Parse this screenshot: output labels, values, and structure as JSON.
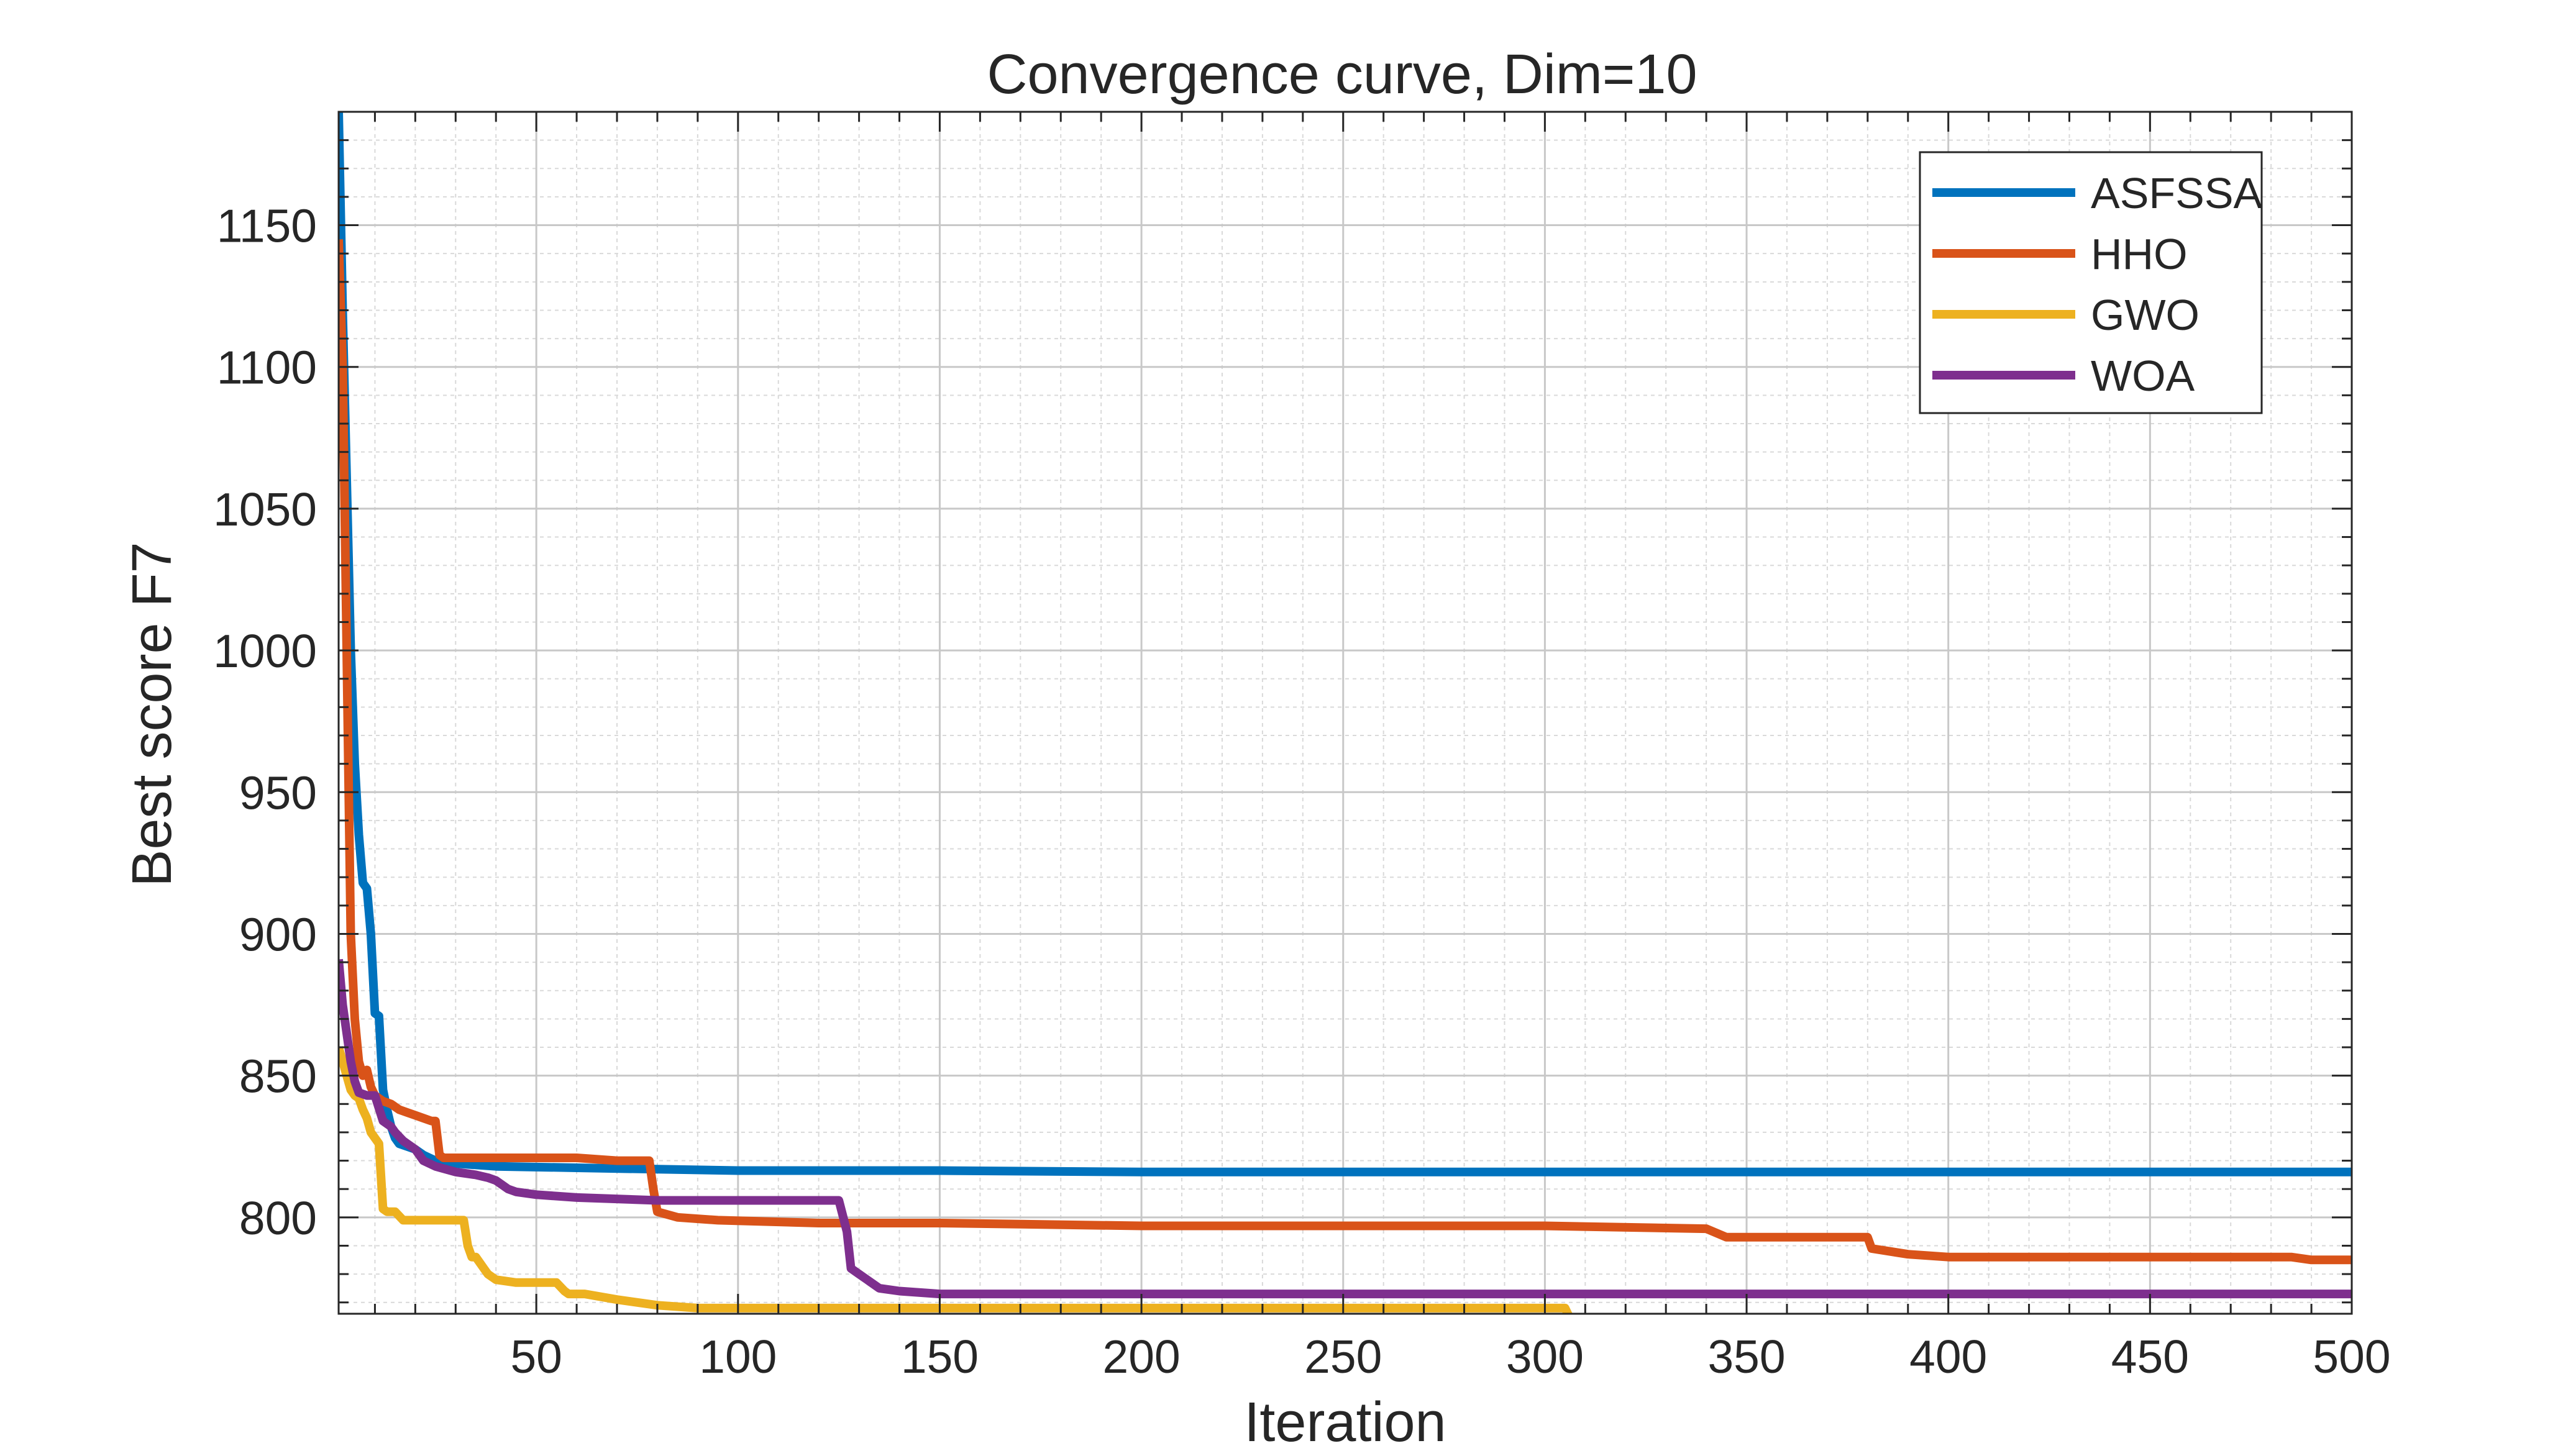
{
  "chart_data": {
    "type": "line",
    "title": "Convergence curve, Dim=10",
    "xlabel": "Iteration",
    "ylabel": "Best score F7",
    "xlim": [
      1,
      500
    ],
    "ylim": [
      766,
      1190
    ],
    "xticks": [
      50,
      100,
      150,
      200,
      250,
      300,
      350,
      400,
      450,
      500
    ],
    "yticks": [
      800,
      850,
      900,
      950,
      1000,
      1050,
      1100,
      1150
    ],
    "grid": true,
    "minor_grid": true,
    "legend_position": "top-right",
    "series": [
      {
        "name": "ASFSSA",
        "color": "#0072BD",
        "points": [
          [
            1,
            1190
          ],
          [
            2,
            1120
          ],
          [
            3,
            1060
          ],
          [
            4,
            1000
          ],
          [
            5,
            960
          ],
          [
            6,
            935
          ],
          [
            7,
            918
          ],
          [
            8,
            916
          ],
          [
            9,
            900
          ],
          [
            10,
            872
          ],
          [
            11,
            871
          ],
          [
            12,
            845
          ],
          [
            13,
            838
          ],
          [
            14,
            832
          ],
          [
            15,
            828
          ],
          [
            16,
            826
          ],
          [
            18,
            825
          ],
          [
            20,
            824
          ],
          [
            22,
            822
          ],
          [
            25,
            820
          ],
          [
            28,
            819
          ],
          [
            30,
            819
          ],
          [
            40,
            818
          ],
          [
            60,
            817.5
          ],
          [
            80,
            817
          ],
          [
            100,
            816.5
          ],
          [
            150,
            816.5
          ],
          [
            200,
            816
          ],
          [
            300,
            816
          ],
          [
            400,
            816
          ],
          [
            500,
            816
          ]
        ]
      },
      {
        "name": "HHO",
        "color": "#D95319",
        "points": [
          [
            1,
            1145
          ],
          [
            2,
            1100
          ],
          [
            3,
            1000
          ],
          [
            4,
            900
          ],
          [
            5,
            870
          ],
          [
            6,
            855
          ],
          [
            7,
            850
          ],
          [
            8,
            852
          ],
          [
            9,
            846
          ],
          [
            10,
            843
          ],
          [
            12,
            841
          ],
          [
            14,
            840
          ],
          [
            16,
            838
          ],
          [
            18,
            837
          ],
          [
            20,
            836
          ],
          [
            22,
            835
          ],
          [
            24,
            834
          ],
          [
            25,
            834
          ],
          [
            26,
            822
          ],
          [
            27,
            821
          ],
          [
            30,
            821
          ],
          [
            50,
            821
          ],
          [
            60,
            821
          ],
          [
            70,
            820
          ],
          [
            78,
            820
          ],
          [
            79,
            810
          ],
          [
            80,
            802
          ],
          [
            85,
            800
          ],
          [
            95,
            799
          ],
          [
            120,
            798
          ],
          [
            150,
            798
          ],
          [
            200,
            797
          ],
          [
            250,
            797
          ],
          [
            300,
            797
          ],
          [
            340,
            796
          ],
          [
            345,
            793
          ],
          [
            380,
            793
          ],
          [
            381,
            789
          ],
          [
            390,
            787
          ],
          [
            400,
            786
          ],
          [
            450,
            786
          ],
          [
            485,
            786
          ],
          [
            490,
            785
          ],
          [
            500,
            785
          ]
        ]
      },
      {
        "name": "GWO",
        "color": "#EDB120",
        "points": [
          [
            1,
            860
          ],
          [
            2,
            855
          ],
          [
            3,
            850
          ],
          [
            4,
            845
          ],
          [
            5,
            843
          ],
          [
            6,
            842
          ],
          [
            7,
            838
          ],
          [
            8,
            835
          ],
          [
            9,
            830
          ],
          [
            10,
            828
          ],
          [
            11,
            826
          ],
          [
            12,
            803
          ],
          [
            13,
            802
          ],
          [
            15,
            802
          ],
          [
            17,
            799
          ],
          [
            20,
            799
          ],
          [
            25,
            799
          ],
          [
            32,
            799
          ],
          [
            33,
            790
          ],
          [
            34,
            786
          ],
          [
            35,
            786
          ],
          [
            37,
            782
          ],
          [
            38,
            780
          ],
          [
            40,
            778
          ],
          [
            45,
            777
          ],
          [
            55,
            777
          ],
          [
            57,
            774
          ],
          [
            58,
            773
          ],
          [
            62,
            773
          ],
          [
            70,
            771
          ],
          [
            80,
            769
          ],
          [
            90,
            768
          ],
          [
            100,
            768
          ],
          [
            150,
            768
          ],
          [
            200,
            768
          ],
          [
            250,
            768
          ],
          [
            305,
            768
          ],
          [
            306,
            765
          ],
          [
            310,
            764
          ],
          [
            320,
            763
          ],
          [
            330,
            762
          ],
          [
            350,
            762
          ],
          [
            400,
            761
          ],
          [
            450,
            761
          ],
          [
            500,
            761
          ]
        ]
      },
      {
        "name": "WOA",
        "color": "#7E2F8E",
        "points": [
          [
            1,
            891
          ],
          [
            2,
            875
          ],
          [
            3,
            865
          ],
          [
            4,
            855
          ],
          [
            5,
            848
          ],
          [
            6,
            844
          ],
          [
            8,
            843
          ],
          [
            10,
            843
          ],
          [
            12,
            834
          ],
          [
            14,
            832
          ],
          [
            15,
            830
          ],
          [
            17,
            827
          ],
          [
            18,
            826
          ],
          [
            20,
            824
          ],
          [
            22,
            820
          ],
          [
            25,
            818
          ],
          [
            30,
            816
          ],
          [
            35,
            815
          ],
          [
            38,
            814
          ],
          [
            40,
            813
          ],
          [
            43,
            810
          ],
          [
            45,
            809
          ],
          [
            50,
            808
          ],
          [
            60,
            807
          ],
          [
            80,
            806
          ],
          [
            100,
            806
          ],
          [
            120,
            806
          ],
          [
            125,
            806
          ],
          [
            127,
            795
          ],
          [
            128,
            782
          ],
          [
            130,
            780
          ],
          [
            132,
            778
          ],
          [
            135,
            775
          ],
          [
            140,
            774
          ],
          [
            150,
            773
          ],
          [
            200,
            773
          ],
          [
            300,
            773
          ],
          [
            400,
            773
          ],
          [
            500,
            773
          ]
        ]
      }
    ]
  }
}
